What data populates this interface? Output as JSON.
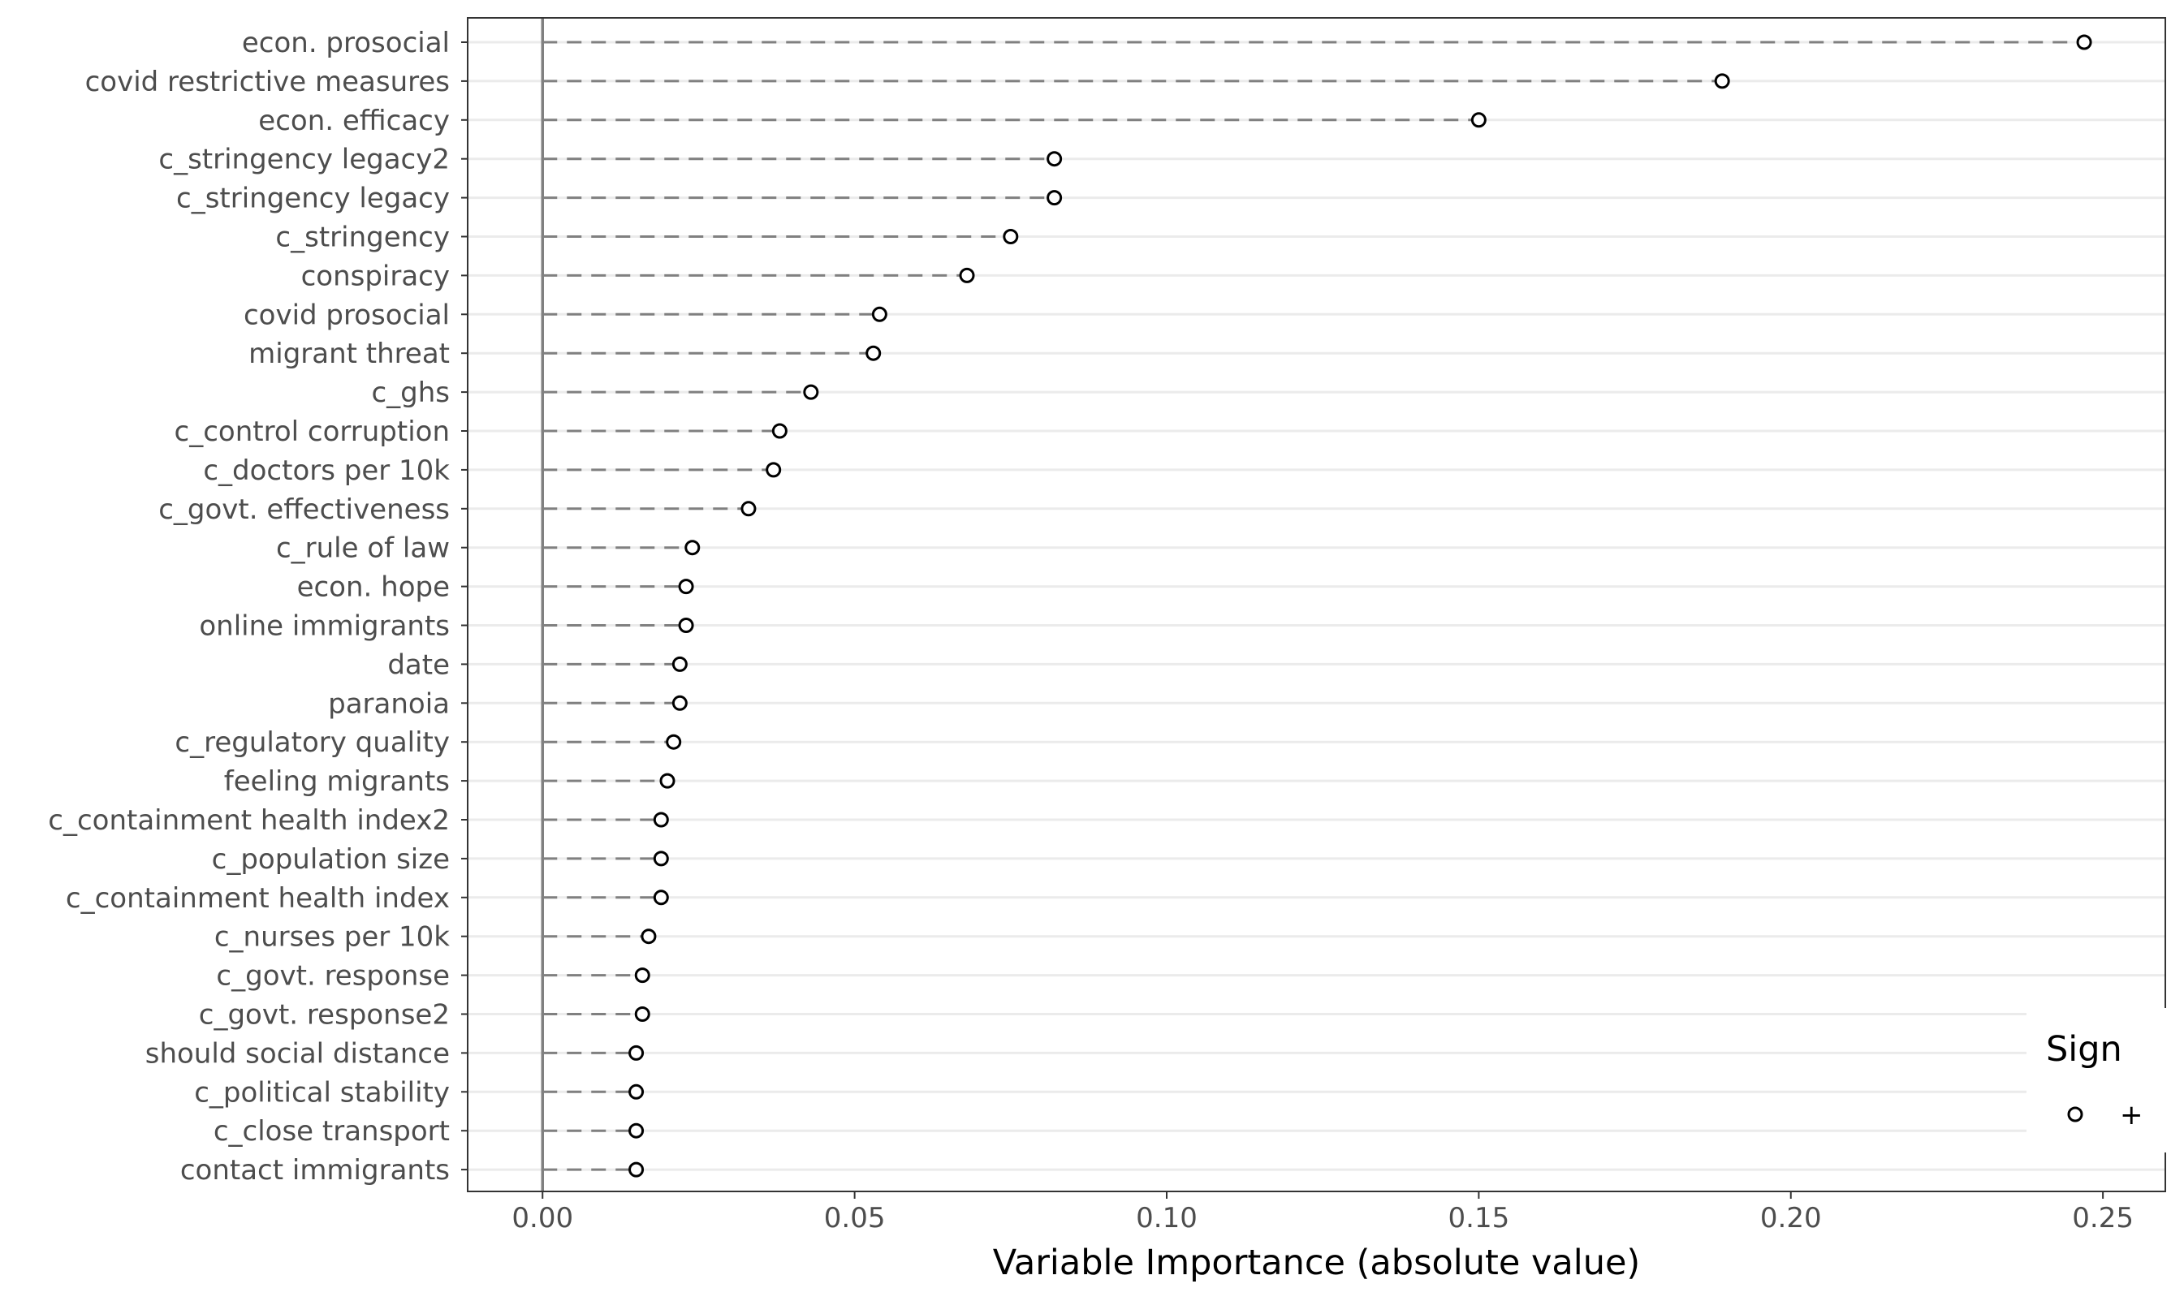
{
  "chart_data": {
    "type": "scatter",
    "xlabel": "Variable Importance (absolute value)",
    "xlim": [
      -0.012,
      0.26
    ],
    "x_ticks": [
      "0.00",
      "0.05",
      "0.10",
      "0.15",
      "0.20",
      "0.25"
    ],
    "x_tick_values": [
      0,
      0.05,
      0.1,
      0.15,
      0.2,
      0.25
    ],
    "reference_line_x": 0,
    "grid": "horizontal-major",
    "categories": [
      "econ. prosocial",
      "covid restrictive measures",
      "econ. efficacy",
      "c_stringency legacy2",
      "c_stringency legacy",
      "c_stringency",
      "conspiracy",
      "covid prosocial",
      "migrant threat",
      "c_ghs",
      "c_control corruption",
      "c_doctors per 10k",
      "c_govt. effectiveness",
      "c_rule of law",
      "econ. hope",
      "online immigrants",
      "date",
      "paranoia",
      "c_regulatory quality",
      "feeling migrants",
      "c_containment health index2",
      "c_population size",
      "c_containment health index",
      "c_nurses per 10k",
      "c_govt. response",
      "c_govt. response2",
      "should social distance",
      "c_political stability",
      "c_close transport",
      "contact immigrants"
    ],
    "values": [
      0.247,
      0.189,
      0.15,
      0.082,
      0.082,
      0.075,
      0.068,
      0.054,
      0.053,
      0.043,
      0.038,
      0.037,
      0.033,
      0.024,
      0.023,
      0.023,
      0.022,
      0.022,
      0.021,
      0.02,
      0.019,
      0.019,
      0.019,
      0.017,
      0.016,
      0.016,
      0.015,
      0.015,
      0.015,
      0.015
    ],
    "legend": {
      "title": "Sign",
      "placement": "bottom-right",
      "entries": [
        {
          "label": "+",
          "marker": "open-circle"
        }
      ]
    }
  }
}
